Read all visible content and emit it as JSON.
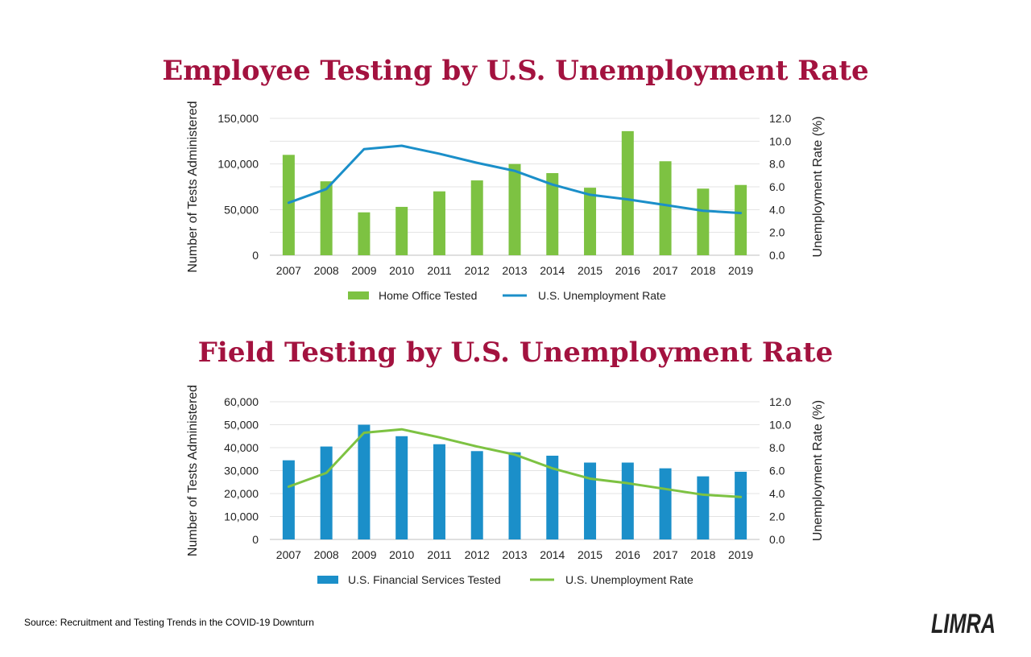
{
  "source_text": "Source: Recruitment and Testing Trends in the COVID-19 Downturn",
  "logo": {
    "text": "LIMRA",
    "color": "#1b8fc9"
  },
  "chart_data": [
    {
      "type": "bar",
      "title": "Employee Testing by U.S. Unemployment Rate",
      "categories": [
        "2007",
        "2008",
        "2009",
        "2010",
        "2011",
        "2012",
        "2013",
        "2014",
        "2015",
        "2016",
        "2017",
        "2018",
        "2019"
      ],
      "ylabel": "Number of Tests Administered",
      "ylabel_right": "Unemployment Rate (%)",
      "ylim": [
        0,
        150000
      ],
      "y_ticks": [
        "0",
        "50,000",
        "100,000",
        "150,000"
      ],
      "ylim_right": [
        0,
        12
      ],
      "y_ticks_right": [
        "0.0",
        "2.0",
        "4.0",
        "6.0",
        "8.0",
        "10.0",
        "12.0"
      ],
      "grid": true,
      "legend_position": "bottom",
      "series": [
        {
          "name": "Home Office Tested",
          "type": "bar",
          "axis": "left",
          "color": "#7dc242",
          "values": [
            110000,
            81000,
            47000,
            53000,
            70000,
            82000,
            100000,
            90000,
            74000,
            136000,
            103000,
            73000,
            77000
          ]
        },
        {
          "name": "U.S. Unemployment Rate",
          "type": "line",
          "axis": "right",
          "color": "#1b8fc9",
          "values": [
            4.6,
            5.8,
            9.3,
            9.6,
            8.9,
            8.1,
            7.4,
            6.2,
            5.3,
            4.9,
            4.4,
            3.9,
            3.7
          ]
        }
      ]
    },
    {
      "type": "bar",
      "title": "Field Testing by U.S. Unemployment Rate",
      "categories": [
        "2007",
        "2008",
        "2009",
        "2010",
        "2011",
        "2012",
        "2013",
        "2014",
        "2015",
        "2016",
        "2017",
        "2018",
        "2019"
      ],
      "ylabel": "Number of Tests Administered",
      "ylabel_right": "Unemployment Rate (%)",
      "ylim": [
        0,
        60000
      ],
      "y_ticks": [
        "0",
        "10,000",
        "20,000",
        "30,000",
        "40,000",
        "50,000",
        "60,000"
      ],
      "ylim_right": [
        0,
        12
      ],
      "y_ticks_right": [
        "0.0",
        "2.0",
        "4.0",
        "6.0",
        "8.0",
        "10.0",
        "12.0"
      ],
      "grid": true,
      "legend_position": "bottom",
      "series": [
        {
          "name": "U.S. Financial Services Tested",
          "type": "bar",
          "axis": "left",
          "color": "#1b8fc9",
          "values": [
            34500,
            40500,
            50000,
            45000,
            41500,
            38500,
            38000,
            36500,
            33500,
            33500,
            31000,
            27500,
            29500
          ]
        },
        {
          "name": "U.S. Unemployment Rate",
          "type": "line",
          "axis": "right",
          "color": "#7dc242",
          "values": [
            4.6,
            5.8,
            9.3,
            9.6,
            8.9,
            8.1,
            7.4,
            6.2,
            5.3,
            4.9,
            4.4,
            3.9,
            3.7
          ]
        }
      ]
    }
  ]
}
